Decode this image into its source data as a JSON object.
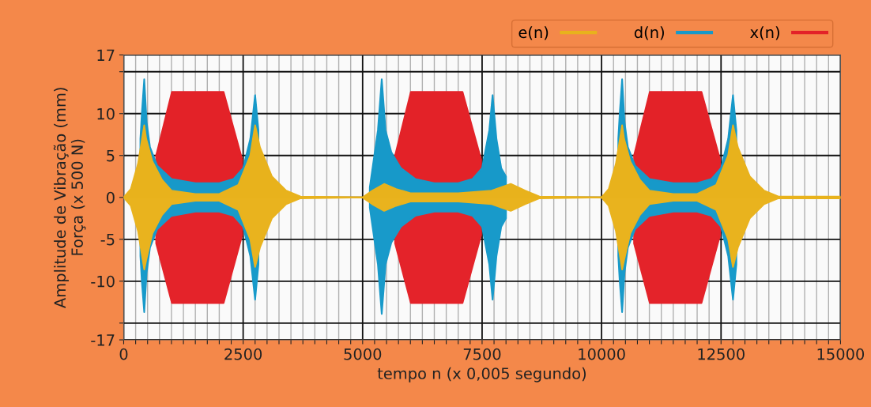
{
  "chart_data": {
    "type": "area",
    "xlabel": "tempo n (x 0,005 segundo)",
    "ylabel": "Amplitude de Vibração (mm)\nForça (x 500 N)",
    "xlim": [
      0,
      15000
    ],
    "xticks": [
      0,
      {
        "value": 250,
        "label": null
      },
      {
        "value": 500,
        "label": null
      },
      {
        "value": 750,
        "label": null
      },
      {
        "value": 1000,
        "label": null
      },
      {
        "value": 1250,
        "label": null
      },
      {
        "value": 1500,
        "label": null
      },
      {
        "value": 1750,
        "label": null
      },
      {
        "value": 2000,
        "label": null
      },
      {
        "value": 2250,
        "label": null
      },
      2500,
      {
        "value": 2750,
        "label": null
      },
      {
        "value": 3000,
        "label": null
      },
      {
        "value": 3250,
        "label": null
      },
      {
        "value": 3500,
        "label": null
      },
      {
        "value": 3750,
        "label": null
      },
      {
        "value": 4000,
        "label": null
      },
      {
        "value": 4250,
        "label": null
      },
      {
        "value": 4500,
        "label": null
      },
      {
        "value": 4750,
        "label": null
      },
      5000,
      {
        "value": 5250,
        "label": null
      },
      {
        "value": 5500,
        "label": null
      },
      {
        "value": 5750,
        "label": null
      },
      {
        "value": 6000,
        "label": null
      },
      {
        "value": 6250,
        "label": null
      },
      {
        "value": 6500,
        "label": null
      },
      {
        "value": 6750,
        "label": null
      },
      {
        "value": 7000,
        "label": null
      },
      {
        "value": 7250,
        "label": null
      },
      7500,
      {
        "value": 7750,
        "label": null
      },
      {
        "value": 8000,
        "label": null
      },
      {
        "value": 8250,
        "label": null
      },
      {
        "value": 8500,
        "label": null
      },
      {
        "value": 8750,
        "label": null
      },
      {
        "value": 9000,
        "label": null
      },
      {
        "value": 9250,
        "label": null
      },
      {
        "value": 9500,
        "label": null
      },
      {
        "value": 9750,
        "label": null
      },
      10000,
      {
        "value": 10250,
        "label": null
      },
      {
        "value": 10500,
        "label": null
      },
      {
        "value": 10750,
        "label": null
      },
      {
        "value": 11000,
        "label": null
      },
      {
        "value": 11250,
        "label": null
      },
      {
        "value": 11500,
        "label": null
      },
      {
        "value": 11750,
        "label": null
      },
      {
        "value": 12000,
        "label": null
      },
      {
        "value": 12250,
        "label": null
      },
      12500,
      {
        "value": 12750,
        "label": null
      },
      {
        "value": 13000,
        "label": null
      },
      {
        "value": 13250,
        "label": null
      },
      {
        "value": 13500,
        "label": null
      },
      {
        "value": 13750,
        "label": null
      },
      {
        "value": 14000,
        "label": null
      },
      {
        "value": 14250,
        "label": null
      },
      {
        "value": 14500,
        "label": null
      },
      {
        "value": 14750,
        "label": null
      },
      15000
    ],
    "ylim": [
      -17,
      17
    ],
    "yticks": [
      -17,
      {
        "value": -15,
        "label": null
      },
      -10,
      -5,
      0,
      5,
      10,
      {
        "value": 15,
        "label": null
      },
      17
    ],
    "grid": true,
    "legend": "top right",
    "series": [
      {
        "name": "e(n)",
        "color": "#e8b21c",
        "x": [
          0,
          150,
          300,
          400,
          430,
          470,
          600,
          800,
          1000,
          1500,
          2000,
          2400,
          2650,
          2750,
          2850,
          3100,
          3400,
          3700,
          5000,
          5200,
          5450,
          5700,
          6000,
          7000,
          7700,
          8100,
          8400,
          8700,
          10000,
          10150,
          10300,
          10400,
          10430,
          10470,
          10600,
          10800,
          11000,
          11500,
          12000,
          12400,
          12650,
          12750,
          12850,
          13100,
          13400,
          13700,
          15000
        ],
        "values": [
          0,
          1,
          4,
          7.5,
          8.6,
          7,
          4.3,
          2.1,
          0.8,
          0.4,
          0.4,
          1.5,
          5,
          8.6,
          6,
          2.5,
          0.8,
          0.1,
          0,
          0.8,
          1.6,
          1,
          0.5,
          0.5,
          0.8,
          1.6,
          0.8,
          0.1,
          0,
          1,
          4,
          7.5,
          8.6,
          7,
          4.3,
          2.1,
          0.8,
          0.4,
          0.4,
          1.5,
          5,
          8.6,
          6,
          2.5,
          0.8,
          0.1,
          0.1
        ]
      },
      {
        "color": "#e9b31e",
        "x": [
          0,
          150,
          300,
          400,
          430,
          470,
          600,
          800,
          1000,
          1500,
          2000,
          2400,
          2650,
          2750,
          2850,
          3100,
          3400,
          3700,
          5000,
          5200,
          5450,
          5700,
          6000,
          7000,
          7700,
          8100,
          8400,
          8700,
          10000,
          10150,
          10300,
          10400,
          10430,
          10470,
          10600,
          10800,
          11000,
          11500,
          12000,
          12400,
          12650,
          12750,
          12850,
          13100,
          13400,
          13700,
          15000
        ],
        "values": [
          0,
          -1,
          -4,
          -7.5,
          -8.6,
          -7.5,
          -4.3,
          -2.1,
          -0.8,
          -0.4,
          -0.4,
          -1.5,
          -5,
          -8.3,
          -6,
          -2.5,
          -0.8,
          -0.1,
          0,
          -0.8,
          -1.6,
          -1,
          -0.5,
          -0.5,
          -0.8,
          -1.6,
          -0.8,
          -0.1,
          0,
          -1,
          -4,
          -7.5,
          -8.6,
          -7.5,
          -4.3,
          -2.1,
          -0.8,
          -0.4,
          -0.4,
          -1.5,
          -5,
          -8.3,
          -6,
          -2.5,
          -0.8,
          -0.1,
          -0.1
        ]
      },
      {
        "name": "d(n)",
        "color": "#1799c9",
        "x": [
          350,
          380,
          430,
          480,
          550,
          700,
          1000,
          1500,
          2000,
          2300,
          2500,
          2650,
          2750,
          2820,
          4000,
          5150,
          5320,
          5400,
          5480,
          5600,
          5800,
          6100,
          6500,
          7000,
          7300,
          7500,
          7650,
          7720,
          7800,
          7900,
          8000,
          9000,
          10350,
          10380,
          10430,
          10480,
          10550,
          10700,
          11000,
          11500,
          12000,
          12300,
          12500,
          12650,
          12750,
          12820
        ],
        "values": [
          7,
          10,
          14.1,
          9,
          6,
          3.8,
          2.2,
          1.7,
          1.7,
          2.2,
          3.5,
          7,
          12.2,
          8,
          null,
          1.2,
          8,
          14.1,
          8,
          5.4,
          3.5,
          2.2,
          1.7,
          1.7,
          2.2,
          3.5,
          8,
          12.2,
          7,
          3.5,
          2.5,
          null,
          7,
          10,
          14.1,
          9,
          6,
          3.8,
          2.2,
          1.7,
          1.7,
          2.2,
          3.5,
          7,
          12.2,
          8
        ]
      },
      {
        "color": "#189aca",
        "x": [
          350,
          380,
          430,
          480,
          550,
          700,
          1000,
          1500,
          2000,
          2300,
          2500,
          2650,
          2750,
          2820,
          4000,
          5150,
          5320,
          5400,
          5480,
          5600,
          5800,
          6100,
          6500,
          7000,
          7300,
          7500,
          7650,
          7720,
          7800,
          7900,
          8000,
          9000,
          10350,
          10380,
          10430,
          10480,
          10550,
          10700,
          11000,
          11500,
          12000,
          12300,
          12500,
          12650,
          12750,
          12820
        ],
        "values": [
          -7,
          -10,
          -13.7,
          -9,
          -6,
          -3.8,
          -2.2,
          -1.7,
          -1.7,
          -2.2,
          -3.5,
          -7,
          -12.2,
          -8,
          null,
          -1.2,
          -8,
          -13.9,
          -8,
          -5.4,
          -3.5,
          -2.2,
          -1.7,
          -1.7,
          -2.2,
          -3.5,
          -8,
          -12.2,
          -7,
          -3.5,
          -2.5,
          null,
          -7,
          -10,
          -13.7,
          -9,
          -6,
          -3.8,
          -2.2,
          -1.7,
          -1.7,
          -2.2,
          -3.5,
          -7,
          -12.2,
          -8
        ]
      },
      {
        "name": "x(n)",
        "color": "#e32228",
        "x": [
          680,
          1010,
          2090,
          2480,
          4000,
          5680,
          6010,
          7090,
          7480,
          9000,
          10680,
          11010,
          12090,
          12480
        ],
        "values": [
          5,
          12.6,
          12.6,
          4.5,
          null,
          5,
          12.6,
          12.6,
          4.5,
          null,
          5,
          12.6,
          12.6,
          4.5
        ]
      },
      {
        "color": "#e4232a",
        "x": [
          680,
          1010,
          2090,
          2480,
          4000,
          5680,
          6010,
          7090,
          7480,
          9000,
          10680,
          11010,
          12090,
          12480
        ],
        "values": [
          -5.5,
          -12.6,
          -12.6,
          -4.5,
          null,
          -5.5,
          -12.6,
          -12.6,
          -4.5,
          null,
          -5.5,
          -12.6,
          -12.6,
          -4.5
        ]
      }
    ]
  }
}
